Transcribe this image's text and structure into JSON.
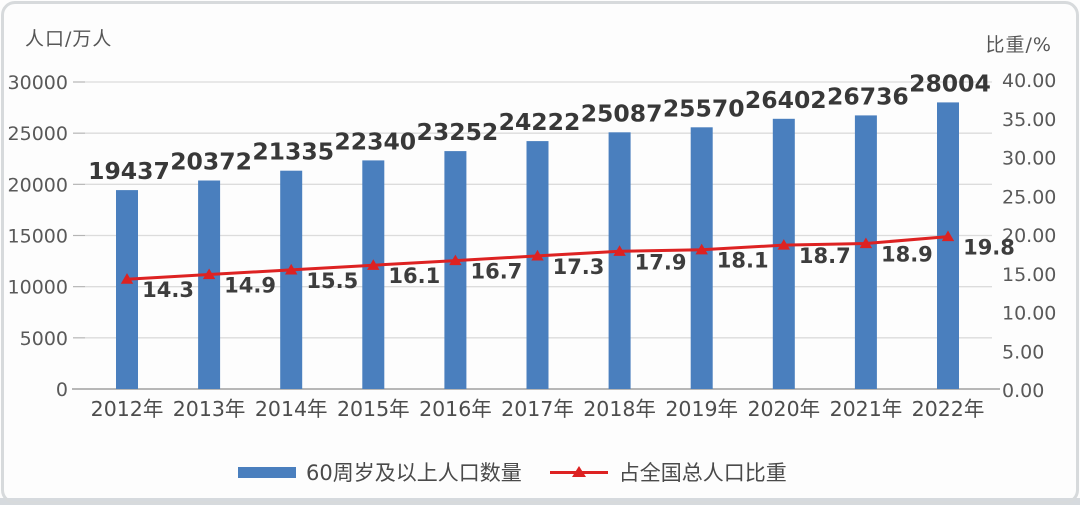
{
  "chart_data": {
    "type": "combo-bar-line",
    "title": "",
    "categories": [
      "2012年",
      "2013年",
      "2014年",
      "2015年",
      "2016年",
      "2017年",
      "2018年",
      "2019年",
      "2020年",
      "2021年",
      "2022年"
    ],
    "series": [
      {
        "name": "60周岁及以上人口数量",
        "type": "bar",
        "axis": "left",
        "values": [
          19437,
          20372,
          21335,
          22340,
          23252,
          24222,
          25087,
          25570,
          26402,
          26736,
          28004
        ],
        "labels": [
          "19437",
          "20372",
          "21335",
          "22340",
          "23252",
          "24222",
          "25087",
          "25570",
          "26402",
          "26736",
          "28004"
        ]
      },
      {
        "name": "占全国总人口比重",
        "type": "line",
        "axis": "right",
        "marker": "triangle",
        "values": [
          14.3,
          14.9,
          15.5,
          16.1,
          16.7,
          17.3,
          17.9,
          18.1,
          18.7,
          18.9,
          19.8
        ],
        "labels": [
          "14.3",
          "14.9",
          "15.5",
          "16.1",
          "16.7",
          "17.3",
          "17.9",
          "18.1",
          "18.7",
          "18.9",
          "19.8"
        ]
      }
    ],
    "left_axis": {
      "title": "人口/万人",
      "min": 0,
      "max": 30000,
      "tick_step": 5000,
      "ticks": [
        "0",
        "5000",
        "10000",
        "15000",
        "20000",
        "25000",
        "30000"
      ]
    },
    "right_axis": {
      "title": "比重/%",
      "min": 0,
      "max": 40,
      "tick_step": 5,
      "ticks": [
        "0.00",
        "5.00",
        "10.00",
        "15.00",
        "20.00",
        "25.00",
        "30.00",
        "35.00",
        "40.00"
      ]
    },
    "grid": "horizontal",
    "legend_position": "bottom"
  },
  "colors": {
    "bar": "#4a7fbe",
    "line": "#dd2222",
    "gridline": "#dcdcdc",
    "axis_line": "#a0a0a0",
    "tick_stub": "#b5b5b5",
    "data_label_text": "#383838",
    "axis_text": "#595959",
    "frame": "#d7dadc"
  }
}
